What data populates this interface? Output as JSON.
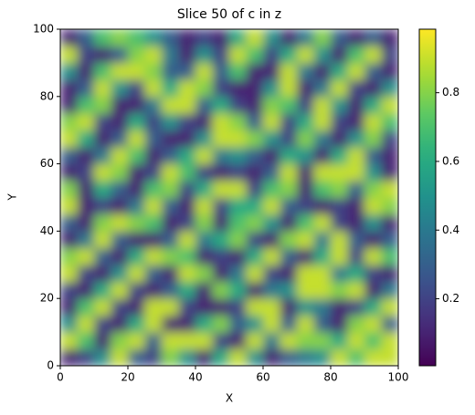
{
  "chart_data": {
    "type": "heatmap",
    "title": "Slice 50 of c in z",
    "x_label": "X",
    "y_label": "Y",
    "xlim": [
      0,
      100
    ],
    "ylim": [
      0,
      100
    ],
    "xticks": [
      0,
      20,
      40,
      60,
      80,
      100
    ],
    "yticks": [
      0,
      20,
      40,
      60,
      80,
      100
    ],
    "colormap": "viridis",
    "clim": [
      0.005,
      0.985
    ],
    "colorbar_ticks": [
      0.2,
      0.4,
      0.6,
      0.8
    ],
    "z": [
      [
        0.1,
        0.2,
        0.5,
        0.9,
        0.3,
        0.2,
        0.8,
        0.5,
        0.1,
        0.6,
        0.9,
        0.5,
        0.1,
        0.3,
        0.4,
        0.5,
        0.9,
        0.7,
        0.9,
        0.9
      ],
      [
        0.9,
        0.7,
        0.1,
        0.8,
        0.9,
        0.3,
        0.9,
        0.9,
        0.9,
        0.2,
        0.1,
        0.9,
        0.4,
        0.9,
        0.8,
        0.8,
        0.6,
        0.9,
        0.7,
        0.9
      ],
      [
        0.5,
        0.9,
        0.2,
        0.1,
        0.6,
        0.9,
        0.1,
        0.1,
        0.6,
        0.8,
        0.3,
        0.5,
        0.9,
        0.3,
        0.9,
        0.3,
        0.1,
        0.8,
        0.9,
        0.3
      ],
      [
        0.1,
        0.7,
        0.9,
        0.2,
        0.1,
        0.9,
        0.9,
        0.2,
        0.1,
        0.1,
        0.2,
        0.9,
        0.9,
        0.1,
        0.5,
        0.4,
        0.1,
        0.2,
        0.6,
        0.9
      ],
      [
        0.2,
        0.1,
        0.6,
        0.9,
        0.2,
        0.1,
        0.3,
        0.6,
        0.1,
        0.8,
        0.6,
        0.1,
        0.4,
        0.5,
        0.9,
        0.9,
        0.8,
        0.9,
        0.1,
        0.4
      ],
      [
        0.9,
        0.2,
        0.1,
        0.5,
        0.9,
        0.3,
        0.1,
        0.9,
        0.8,
        0.1,
        0.4,
        0.9,
        0.2,
        0.1,
        0.9,
        0.9,
        0.4,
        0.6,
        0.2,
        0.1
      ],
      [
        0.8,
        0.9,
        0.3,
        0.1,
        0.6,
        0.9,
        0.8,
        0.7,
        0.1,
        0.2,
        0.1,
        0.6,
        0.9,
        0.3,
        0.1,
        0.6,
        0.9,
        0.2,
        0.9,
        0.7
      ],
      [
        0.1,
        0.4,
        0.9,
        0.3,
        0.1,
        0.1,
        0.3,
        0.9,
        0.4,
        0.6,
        0.8,
        0.2,
        0.1,
        0.8,
        0.9,
        0.4,
        0.9,
        0.3,
        0.1,
        0.3
      ],
      [
        0.3,
        0.1,
        0.8,
        0.9,
        0.8,
        0.7,
        0.1,
        0.2,
        0.8,
        0.1,
        0.7,
        0.8,
        0.5,
        0.1,
        0.7,
        0.9,
        0.2,
        0.1,
        0.5,
        0.1
      ],
      [
        0.9,
        0.1,
        0.2,
        0.1,
        0.4,
        0.9,
        0.3,
        0.1,
        0.9,
        0.2,
        0.6,
        0.6,
        0.9,
        0.3,
        0.2,
        0.1,
        0.2,
        0.1,
        0.9,
        0.8
      ],
      [
        0.8,
        0.1,
        0.6,
        0.3,
        0.1,
        0.7,
        0.8,
        0.2,
        0.6,
        0.9,
        0.9,
        0.2,
        0.7,
        0.8,
        0.1,
        0.7,
        0.8,
        0.3,
        0.8,
        0.9
      ],
      [
        0.1,
        0.2,
        0.9,
        0.8,
        0.1,
        0.2,
        0.9,
        0.7,
        0.2,
        0.1,
        0.2,
        0.1,
        0.3,
        0.9,
        0.1,
        0.9,
        0.9,
        0.9,
        0.5,
        0.1
      ],
      [
        0.3,
        0.1,
        0.4,
        0.9,
        0.7,
        0.1,
        0.3,
        0.6,
        0.9,
        0.4,
        0.5,
        0.3,
        0.1,
        0.6,
        0.5,
        0.1,
        0.6,
        0.9,
        0.3,
        0.1
      ],
      [
        0.9,
        0.6,
        0.1,
        0.3,
        0.9,
        0.3,
        0.1,
        0.1,
        0.5,
        0.9,
        0.9,
        0.8,
        0.5,
        0.2,
        0.8,
        0.4,
        0.1,
        0.5,
        0.8,
        0.2
      ],
      [
        0.8,
        0.9,
        0.2,
        0.1,
        0.6,
        0.2,
        0.5,
        0.2,
        0.1,
        0.9,
        0.8,
        0.3,
        0.9,
        0.2,
        0.6,
        0.9,
        0.2,
        0.1,
        0.9,
        0.7
      ],
      [
        0.1,
        0.7,
        0.8,
        0.1,
        0.1,
        0.4,
        0.9,
        0.9,
        0.3,
        0.6,
        0.2,
        0.1,
        0.8,
        0.7,
        0.2,
        0.9,
        0.5,
        0.1,
        0.6,
        0.9
      ],
      [
        0.1,
        0.3,
        0.9,
        0.5,
        0.2,
        0.9,
        0.6,
        0.9,
        0.8,
        0.2,
        0.1,
        0.1,
        0.5,
        0.9,
        0.1,
        0.4,
        0.9,
        0.2,
        0.1,
        0.5
      ],
      [
        0.5,
        0.1,
        0.7,
        0.9,
        0.9,
        0.8,
        0.3,
        0.3,
        0.9,
        0.3,
        0.7,
        0.1,
        0.1,
        0.9,
        0.4,
        0.1,
        0.6,
        0.9,
        0.3,
        0.1
      ],
      [
        0.9,
        0.2,
        0.1,
        0.3,
        0.8,
        0.9,
        0.4,
        0.1,
        0.5,
        0.2,
        0.9,
        0.7,
        0.2,
        0.6,
        0.9,
        0.5,
        0.1,
        0.7,
        0.9,
        0.2
      ],
      [
        0.1,
        0.3,
        0.7,
        0.8,
        0.7,
        0.5,
        0.3,
        0.1,
        0.2,
        0.1,
        0.6,
        0.9,
        0.5,
        0.1,
        0.4,
        0.8,
        0.3,
        0.1,
        0.3,
        0.1
      ]
    ]
  }
}
